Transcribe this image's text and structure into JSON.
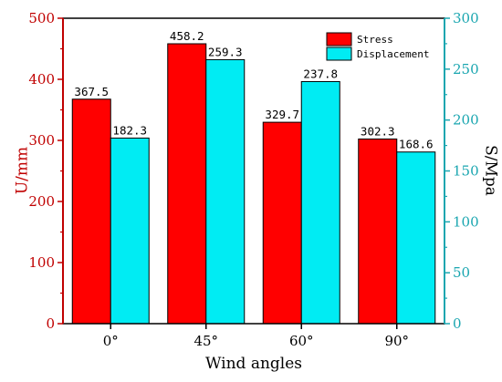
{
  "chart_data": {
    "type": "bar",
    "xlabel": "Wind angles",
    "categories": [
      "0°",
      "45°",
      "60°",
      "90°"
    ],
    "y_left": {
      "label": "U/mm",
      "lim": [
        0,
        500
      ],
      "ticks": [
        0,
        100,
        200,
        300,
        400,
        500
      ]
    },
    "y_right": {
      "label": "S/Mpa",
      "lim": [
        0,
        300
      ],
      "ticks": [
        0,
        50,
        100,
        150,
        200,
        250,
        300
      ]
    },
    "series": [
      {
        "name": "Stress",
        "axis": "left",
        "values": [
          367.5,
          458.2,
          329.7,
          302.3
        ],
        "labels": [
          "367.5",
          "458.2",
          "329.7",
          "302.3"
        ]
      },
      {
        "name": "Displacement",
        "axis": "right",
        "values": [
          182.3,
          259.3,
          237.8,
          168.6
        ],
        "labels": [
          "182.3",
          "259.3",
          "237.8",
          "168.6"
        ]
      }
    ],
    "legend_position": "top-right",
    "grid": false
  },
  "colors": {
    "stress": "#ff0000",
    "displacement": "#00ecf3",
    "left_axis": "#c00000",
    "right_axis": "#1aa6b0"
  }
}
